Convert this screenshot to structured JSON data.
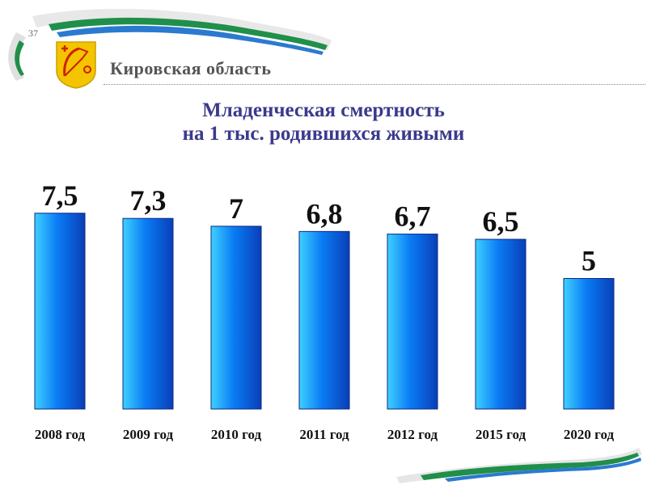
{
  "page_number": "37",
  "header": {
    "region": "Кировская область"
  },
  "chart_data": {
    "type": "bar",
    "title": [
      "Младенческая смертность",
      "на 1 тыс. родившихся живыми"
    ],
    "categories": [
      "2008 год",
      "2009 год",
      "2010 год",
      "2011 год",
      "2012 год",
      "2015 год",
      "2020 год"
    ],
    "values": [
      7.5,
      7.3,
      7,
      6.8,
      6.7,
      6.5,
      5
    ],
    "value_labels": [
      "7,5",
      "7,3",
      "7",
      "6,8",
      "6,7",
      "6,5",
      "5"
    ],
    "grid": false,
    "legend": "none",
    "colors": {
      "bar_top": "#3fd0ff",
      "bar_mid": "#0a7cf5",
      "bar_edge": "#0a3fb8"
    }
  },
  "colors": {
    "title": "#3a3a8c",
    "ribbon_green": "#1f8f4a",
    "ribbon_blue": "#2a7ad0"
  }
}
